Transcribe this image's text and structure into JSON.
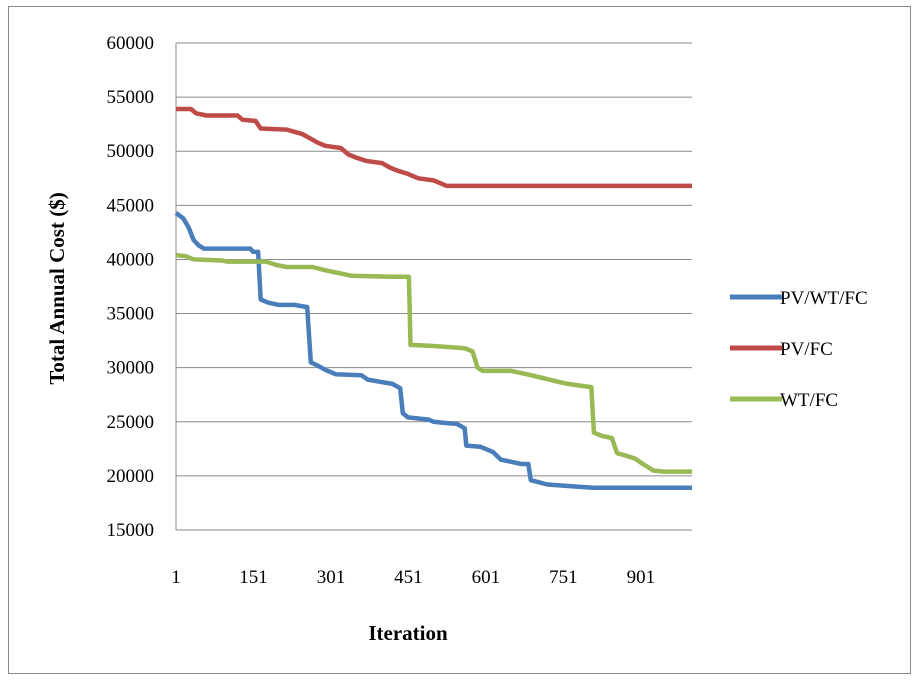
{
  "chart_data": {
    "type": "line",
    "title": "",
    "xlabel": "Iteration",
    "ylabel": "Total Annual Cost ($)",
    "xlim": [
      1,
      1000
    ],
    "ylim": [
      15000,
      60000
    ],
    "x_ticks": [
      1,
      151,
      301,
      451,
      601,
      751,
      901
    ],
    "y_ticks": [
      15000,
      20000,
      25000,
      30000,
      35000,
      40000,
      45000,
      50000,
      55000,
      60000
    ],
    "grid": "horizontal",
    "legend_position": "right",
    "series": [
      {
        "name": "PV/WT/FC",
        "color": "#4a7ebb",
        "points": [
          [
            1,
            44300
          ],
          [
            15,
            43800
          ],
          [
            25,
            43000
          ],
          [
            35,
            41800
          ],
          [
            45,
            41300
          ],
          [
            55,
            41000
          ],
          [
            145,
            41000
          ],
          [
            150,
            40700
          ],
          [
            160,
            40700
          ],
          [
            165,
            36300
          ],
          [
            180,
            36000
          ],
          [
            200,
            35800
          ],
          [
            230,
            35800
          ],
          [
            255,
            35600
          ],
          [
            262,
            30500
          ],
          [
            275,
            30200
          ],
          [
            290,
            29800
          ],
          [
            310,
            29400
          ],
          [
            360,
            29300
          ],
          [
            372,
            28900
          ],
          [
            395,
            28700
          ],
          [
            420,
            28500
          ],
          [
            435,
            28100
          ],
          [
            440,
            25800
          ],
          [
            450,
            25400
          ],
          [
            490,
            25200
          ],
          [
            500,
            25000
          ],
          [
            520,
            24900
          ],
          [
            545,
            24800
          ],
          [
            560,
            24400
          ],
          [
            563,
            22800
          ],
          [
            590,
            22700
          ],
          [
            615,
            22200
          ],
          [
            630,
            21500
          ],
          [
            650,
            21300
          ],
          [
            670,
            21100
          ],
          [
            683,
            21100
          ],
          [
            688,
            19600
          ],
          [
            705,
            19400
          ],
          [
            720,
            19200
          ],
          [
            750,
            19100
          ],
          [
            780,
            19000
          ],
          [
            810,
            18900
          ],
          [
            1000,
            18900
          ]
        ]
      },
      {
        "name": "PV/FC",
        "color": "#be4b48",
        "points": [
          [
            1,
            53900
          ],
          [
            30,
            53900
          ],
          [
            40,
            53500
          ],
          [
            60,
            53300
          ],
          [
            120,
            53300
          ],
          [
            130,
            52900
          ],
          [
            155,
            52800
          ],
          [
            165,
            52100
          ],
          [
            215,
            52000
          ],
          [
            245,
            51600
          ],
          [
            260,
            51200
          ],
          [
            275,
            50800
          ],
          [
            290,
            50500
          ],
          [
            320,
            50300
          ],
          [
            335,
            49700
          ],
          [
            350,
            49400
          ],
          [
            370,
            49100
          ],
          [
            400,
            48900
          ],
          [
            415,
            48500
          ],
          [
            430,
            48200
          ],
          [
            450,
            47900
          ],
          [
            470,
            47500
          ],
          [
            500,
            47300
          ],
          [
            515,
            47000
          ],
          [
            525,
            46800
          ],
          [
            1000,
            46800
          ]
        ]
      },
      {
        "name": "WT/FC",
        "color": "#98b954",
        "points": [
          [
            1,
            40400
          ],
          [
            20,
            40300
          ],
          [
            35,
            40000
          ],
          [
            90,
            39900
          ],
          [
            100,
            39800
          ],
          [
            175,
            39800
          ],
          [
            195,
            39500
          ],
          [
            215,
            39300
          ],
          [
            265,
            39300
          ],
          [
            290,
            39000
          ],
          [
            320,
            38700
          ],
          [
            340,
            38500
          ],
          [
            420,
            38400
          ],
          [
            452,
            38400
          ],
          [
            455,
            32100
          ],
          [
            500,
            32000
          ],
          [
            530,
            31900
          ],
          [
            560,
            31800
          ],
          [
            575,
            31500
          ],
          [
            585,
            30000
          ],
          [
            595,
            29700
          ],
          [
            650,
            29700
          ],
          [
            680,
            29400
          ],
          [
            715,
            29000
          ],
          [
            740,
            28700
          ],
          [
            760,
            28500
          ],
          [
            790,
            28300
          ],
          [
            805,
            28200
          ],
          [
            810,
            24000
          ],
          [
            825,
            23700
          ],
          [
            845,
            23500
          ],
          [
            855,
            22100
          ],
          [
            870,
            21900
          ],
          [
            890,
            21600
          ],
          [
            905,
            21100
          ],
          [
            915,
            20800
          ],
          [
            925,
            20500
          ],
          [
            945,
            20400
          ],
          [
            1000,
            20400
          ]
        ]
      }
    ]
  }
}
